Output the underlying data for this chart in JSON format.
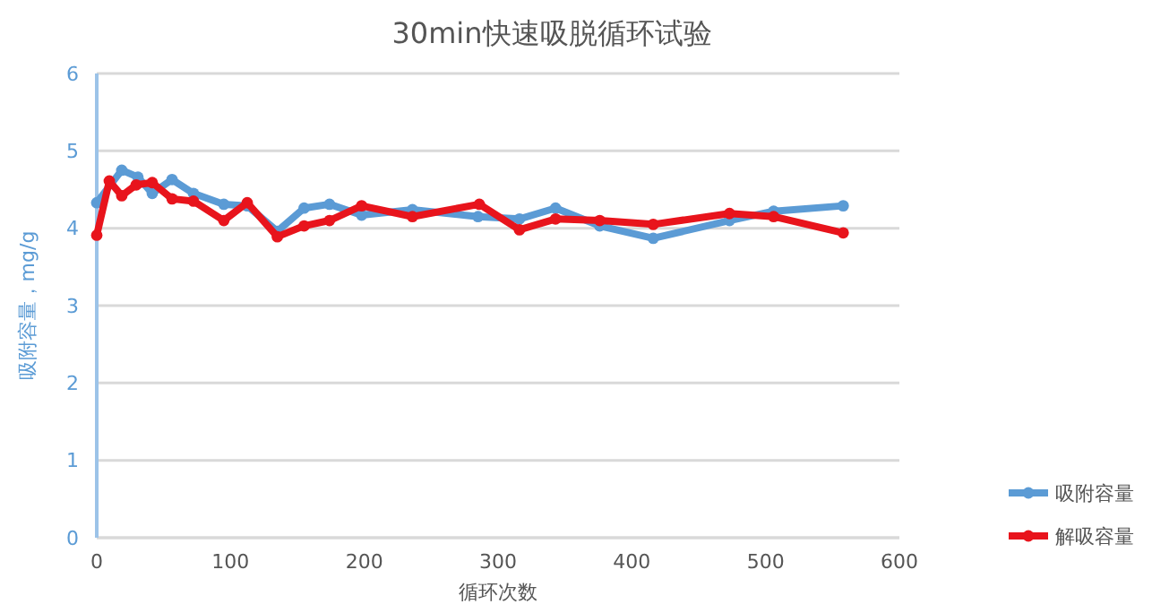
{
  "chart_data": {
    "type": "line",
    "title": "30min快速吸脱循环试验",
    "xlabel": "循环次数",
    "ylabel": "吸附容量，mg/g",
    "xlim": [
      0,
      600
    ],
    "xticks": [
      0,
      100,
      200,
      300,
      400,
      500,
      600
    ],
    "ylim": [
      0,
      6
    ],
    "yticks": [
      0,
      1,
      2,
      3,
      4,
      5,
      6
    ],
    "grid": "y",
    "legend": "bottom right",
    "marker": "circle",
    "line_style": "solid",
    "series": [
      {
        "name": "吸附容量",
        "color": "#5b9bd5",
        "x": [
          0,
          18.7,
          30.8,
          41.5,
          56.3,
          72.3,
          95,
          112.5,
          135,
          155,
          174,
          198,
          236,
          285,
          316,
          343,
          376,
          416,
          473,
          506,
          558
        ],
        "values": [
          4.33,
          4.75,
          4.66,
          4.45,
          4.63,
          4.45,
          4.31,
          4.29,
          3.96,
          4.26,
          4.31,
          4.17,
          4.24,
          4.15,
          4.12,
          4.26,
          4.03,
          3.87,
          4.1,
          4.22,
          4.29
        ]
      },
      {
        "name": "解吸容量",
        "color": "#e8141c",
        "x": [
          0,
          9.4,
          18.7,
          29.5,
          41.5,
          56.3,
          72.3,
          95,
          112.5,
          135,
          155,
          174,
          198,
          236,
          286,
          316,
          343,
          376,
          416,
          473,
          506,
          558
        ],
        "values": [
          3.91,
          4.61,
          4.42,
          4.56,
          4.59,
          4.38,
          4.35,
          4.1,
          4.33,
          3.89,
          4.03,
          4.1,
          4.29,
          4.15,
          4.31,
          3.98,
          4.12,
          4.1,
          4.05,
          4.19,
          4.15,
          3.94
        ]
      }
    ]
  }
}
